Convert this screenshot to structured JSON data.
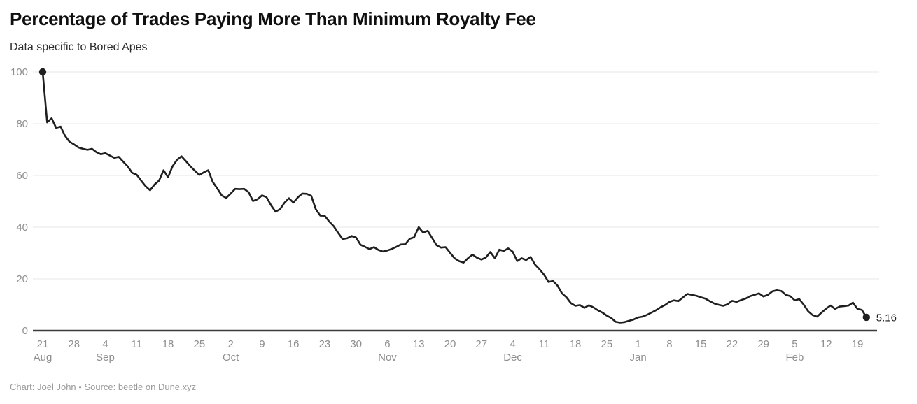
{
  "header": {
    "title": "Percentage of Trades Paying More Than Minimum Royalty Fee",
    "subtitle": "Data specific to Bored Apes"
  },
  "footer": {
    "credit": "Chart: Joel John • Source: beetle on Dune.xyz"
  },
  "colors": {
    "background": "#ffffff",
    "line": "#1f1f1f",
    "grid": "#e7e7e7",
    "axis": "#3c3c3c",
    "tick_label": "#8e8e8e",
    "end_label": "#1a1a1a"
  },
  "chart_data": {
    "type": "line",
    "title": "Percentage of Trades Paying More Than Minimum Royalty Fee",
    "subtitle": "Data specific to Bored Apes",
    "unit": "percent",
    "frequency": "daily",
    "x_range": "Aug 21 – Feb 21",
    "ylim": [
      0,
      100
    ],
    "y_ticks": [
      0,
      20,
      40,
      60,
      80,
      100
    ],
    "grid": "horizontal",
    "legend": "none",
    "x_ticks": [
      {
        "label": "21",
        "month": "Aug"
      },
      {
        "label": "28",
        "month": ""
      },
      {
        "label": "4",
        "month": "Sep"
      },
      {
        "label": "11",
        "month": ""
      },
      {
        "label": "18",
        "month": ""
      },
      {
        "label": "25",
        "month": ""
      },
      {
        "label": "2",
        "month": "Oct"
      },
      {
        "label": "9",
        "month": ""
      },
      {
        "label": "16",
        "month": ""
      },
      {
        "label": "23",
        "month": ""
      },
      {
        "label": "30",
        "month": ""
      },
      {
        "label": "6",
        "month": "Nov"
      },
      {
        "label": "13",
        "month": ""
      },
      {
        "label": "20",
        "month": ""
      },
      {
        "label": "27",
        "month": ""
      },
      {
        "label": "4",
        "month": "Dec"
      },
      {
        "label": "11",
        "month": ""
      },
      {
        "label": "18",
        "month": ""
      },
      {
        "label": "25",
        "month": ""
      },
      {
        "label": "1",
        "month": "Jan"
      },
      {
        "label": "8",
        "month": ""
      },
      {
        "label": "15",
        "month": ""
      },
      {
        "label": "22",
        "month": ""
      },
      {
        "label": "29",
        "month": ""
      },
      {
        "label": "5",
        "month": "Feb"
      },
      {
        "label": "12",
        "month": ""
      },
      {
        "label": "19",
        "month": ""
      }
    ],
    "values": [
      100,
      80.5,
      82.1,
      78.4,
      78.9,
      75.3,
      73,
      72,
      70.8,
      70.3,
      69.9,
      70.3,
      69,
      68.2,
      68.6,
      67.7,
      66.8,
      67.2,
      65.3,
      63.5,
      61,
      60.3,
      58,
      55.8,
      54.3,
      56.5,
      58,
      62,
      59.3,
      63.5,
      66,
      67.4,
      65.5,
      63.5,
      61.8,
      60.2,
      61.2,
      62,
      57.5,
      55,
      52.3,
      51.3,
      53,
      54.8,
      54.7,
      54.8,
      53.5,
      50.1,
      50.8,
      52.3,
      51.6,
      48.5,
      46,
      46.9,
      49.4,
      51.2,
      49.5,
      51.5,
      53,
      52.9,
      52.1,
      47,
      44.5,
      44.4,
      42.2,
      40.4,
      37.8,
      35.4,
      35.7,
      36.6,
      36,
      33.2,
      32.4,
      31.5,
      32.3,
      31.2,
      30.6,
      31,
      31.6,
      32.4,
      33.3,
      33.4,
      35.5,
      36.1,
      40,
      37.9,
      38.6,
      35.8,
      33,
      32.1,
      32.3,
      30.1,
      28,
      26.9,
      26.3,
      28,
      29.4,
      28.2,
      27.5,
      28.3,
      30.4,
      28,
      31.3,
      30.8,
      31.8,
      30.5,
      26.9,
      28,
      27.3,
      28.5,
      25.5,
      23.7,
      21.6,
      18.8,
      19.2,
      17.4,
      14.4,
      12.9,
      10.6,
      9.6,
      9.9,
      8.8,
      9.8,
      9,
      7.9,
      7,
      5.8,
      4.9,
      3.4,
      3.1,
      3.3,
      3.8,
      4.3,
      5.1,
      5.4,
      6.1,
      7,
      7.9,
      9,
      9.9,
      11.1,
      11.7,
      11.4,
      12.8,
      14.2,
      13.8,
      13.5,
      12.9,
      12.4,
      11.4,
      10.5,
      10,
      9.6,
      10.2,
      11.5,
      11.1,
      11.8,
      12.4,
      13.3,
      13.8,
      14.4,
      13.2,
      13.8,
      15.2,
      15.6,
      15.3,
      13.8,
      13.3,
      11.7,
      12.2,
      10,
      7.5,
      6,
      5.4,
      7,
      8.5,
      9.7,
      8.4,
      9.3,
      9.5,
      9.7,
      10.8,
      8.4,
      8,
      5.16
    ],
    "markers": {
      "start": {
        "x_label": "Aug 21",
        "value": 100
      },
      "end": {
        "x_label": "Feb 21",
        "value": 5.16
      }
    },
    "end_label": "5.16"
  }
}
